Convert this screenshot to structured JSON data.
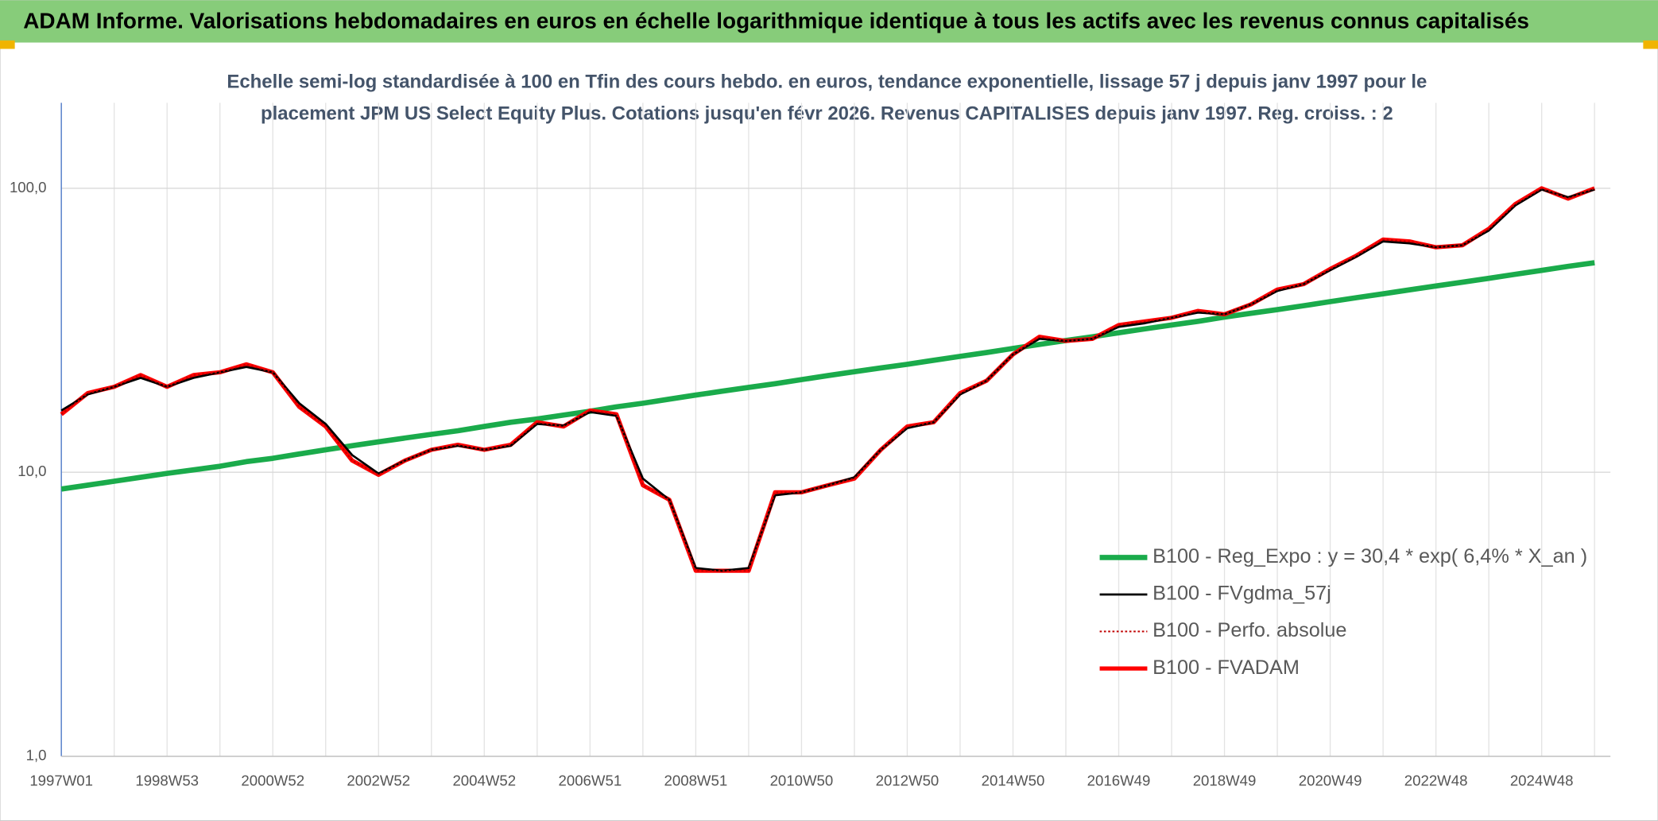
{
  "chart_data": {
    "type": "line",
    "title": "ADAM Informe. Valorisations hebdomadaires en euros en échelle logarithmique identique à tous les actifs avec les revenus connus capitalisés",
    "subtitle": [
      "Echelle semi-log standardisée à 100 en Tfin des cours hebdo. en euros, tendance exponentielle, lissage 57 j depuis janv 1997 pour le",
      "placement JPM US Select Equity Plus. Cotations jusqu'en févr 2026. Revenus CAPITALISES depuis janv 1997. Reg. croiss. : 2"
    ],
    "categories": [
      "1997W01",
      null,
      null,
      null,
      "1998W53",
      null,
      null,
      null,
      "2000W52",
      null,
      null,
      null,
      "2002W52",
      null,
      null,
      null,
      "2004W52",
      null,
      null,
      null,
      "2006W51",
      null,
      null,
      null,
      "2008W51",
      null,
      null,
      null,
      "2010W50",
      null,
      null,
      null,
      "2012W50",
      null,
      null,
      null,
      "2014W50",
      null,
      null,
      null,
      "2016W49",
      null,
      null,
      null,
      "2018W49",
      null,
      null,
      null,
      "2020W49",
      null,
      null,
      null,
      "2022W48",
      null,
      null,
      null,
      "2024W48",
      null,
      null
    ],
    "log": true,
    "ylim": [
      1,
      200
    ],
    "yticks": [
      {
        "value": 1,
        "label": "1,0"
      },
      {
        "value": 10,
        "label": "10,0"
      },
      {
        "value": 100,
        "label": "100,0"
      }
    ],
    "grid": true,
    "legend": "lower right",
    "series": [
      {
        "name": "B100 - Reg_Expo : y = 30,4 * exp( 6,4% *  X_an )",
        "color": "#1aab4b",
        "width": 5,
        "values": [
          8.73,
          9.01,
          9.3,
          9.6,
          9.91,
          10.2,
          10.5,
          10.9,
          11.2,
          11.6,
          12.0,
          12.4,
          12.8,
          13.2,
          13.6,
          14.0,
          14.5,
          15.0,
          15.4,
          15.9,
          16.4,
          17.0,
          17.5,
          18.1,
          18.7,
          19.3,
          19.9,
          20.5,
          21.2,
          21.9,
          22.6,
          23.3,
          24.0,
          24.8,
          25.6,
          26.4,
          27.3,
          28.2,
          29.1,
          30.0,
          31.0,
          32.0,
          33.0,
          34.0,
          35.2,
          36.3,
          37.4,
          38.6,
          39.9,
          41.2,
          42.5,
          43.9,
          45.3,
          46.7,
          48.2,
          49.8,
          51.4,
          53.1,
          54.7
        ]
      },
      {
        "name": "B100 - FVgdma_57j",
        "color": "#000000",
        "width": 2,
        "values": [
          16.5,
          18.8,
          20,
          21.5,
          20,
          21.5,
          22.5,
          23.5,
          22.5,
          17.5,
          14.8,
          11.5,
          9.9,
          11,
          12,
          12.4,
          12,
          12.4,
          14.8,
          14.6,
          16.3,
          15.8,
          9.5,
          8,
          4.6,
          4.5,
          4.6,
          8.3,
          8.5,
          9,
          9.6,
          12,
          14.3,
          15,
          18.8,
          21,
          26,
          29.5,
          29,
          29.5,
          32.5,
          33.5,
          35,
          36.5,
          36,
          39,
          43.5,
          46,
          51.5,
          57.5,
          65,
          64,
          62,
          63,
          71,
          87,
          99,
          93,
          99
        ]
      },
      {
        "name": "B100 - Perfo. absolue",
        "color": "#c00000",
        "width": 1.5,
        "dash": "2,2",
        "values": [
          16,
          19,
          20,
          22,
          20,
          22,
          22.5,
          24,
          22.5,
          17,
          14.5,
          11,
          9.8,
          11,
          12,
          12.5,
          12,
          12.5,
          15,
          14.5,
          16.5,
          16,
          9,
          8,
          4.5,
          4.5,
          4.5,
          8.5,
          8.5,
          9,
          9.5,
          12,
          14.5,
          15,
          19,
          21,
          26,
          30,
          29,
          29.5,
          33,
          34,
          35,
          37,
          36,
          39,
          44,
          46,
          52,
          58,
          66,
          65,
          62,
          63,
          72,
          88,
          100,
          92,
          100
        ]
      },
      {
        "name": "B100 - FVADAM",
        "color": "#ff0000",
        "width": 4,
        "values": [
          16,
          19,
          20,
          22,
          20,
          22,
          22.5,
          24,
          22.5,
          17,
          14.5,
          11,
          9.8,
          11,
          12,
          12.5,
          12,
          12.5,
          15,
          14.5,
          16.5,
          16,
          9,
          8,
          4.5,
          4.5,
          4.5,
          8.5,
          8.5,
          9,
          9.5,
          12,
          14.5,
          15,
          19,
          21,
          26,
          30,
          29,
          29.5,
          33,
          34,
          35,
          37,
          36,
          39,
          44,
          46,
          52,
          58,
          66,
          65,
          62,
          63,
          72,
          88,
          100,
          92,
          100
        ]
      }
    ]
  }
}
